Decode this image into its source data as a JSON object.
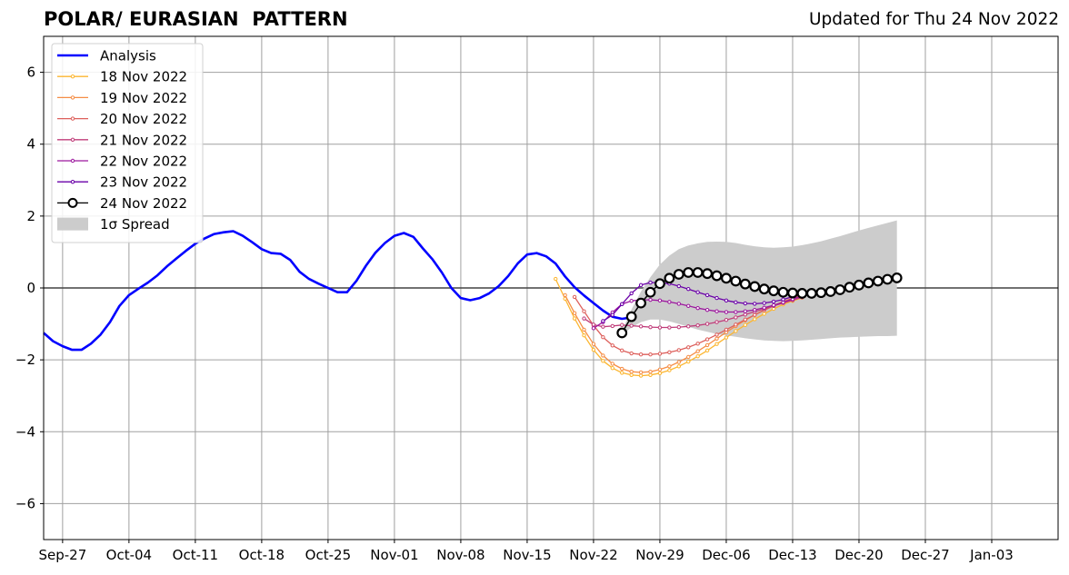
{
  "title": "POLAR/ EURASIAN  PATTERN",
  "updated": "Updated for Thu 24 Nov 2022",
  "chart_data": {
    "type": "line",
    "title": "POLAR/ EURASIAN  PATTERN",
    "xlabel": "",
    "ylabel": "",
    "xlim": [
      "2022-09-25",
      "2023-01-10"
    ],
    "ylim": [
      -7,
      7
    ],
    "x_ticks": [
      "Sep-27",
      "Oct-04",
      "Oct-11",
      "Oct-18",
      "Oct-25",
      "Nov-01",
      "Nov-08",
      "Nov-15",
      "Nov-22",
      "Nov-29",
      "Dec-06",
      "Dec-13",
      "Dec-20",
      "Dec-27",
      "Jan-03"
    ],
    "y_ticks": [
      -6,
      -4,
      -2,
      0,
      2,
      4,
      6
    ],
    "y_tick_labels": [
      "−6",
      "−4",
      "−2",
      "0",
      "2",
      "4",
      "6"
    ],
    "grid": true,
    "legend_position": "upper-left",
    "colors": {
      "analysis": "#0000ff",
      "f18": "#fcb630",
      "f19": "#f58d45",
      "f20": "#dd5f5b",
      "f21": "#c03d7a",
      "f22": "#9c179e",
      "f23": "#6a00a8",
      "f24": "#000000",
      "spread": "#cccccc"
    },
    "analysis": {
      "name": "Analysis",
      "start": "2022-09-25",
      "values": [
        -1.25,
        -1.48,
        -1.62,
        -1.72,
        -1.72,
        -1.55,
        -1.3,
        -0.95,
        -0.5,
        -0.2,
        -0.02,
        0.15,
        0.35,
        0.6,
        0.82,
        1.03,
        1.23,
        1.38,
        1.5,
        1.55,
        1.58,
        1.45,
        1.27,
        1.08,
        0.97,
        0.95,
        0.78,
        0.45,
        0.25,
        0.12,
        0.0,
        -0.12,
        -0.12,
        0.2,
        0.62,
        0.98,
        1.25,
        1.45,
        1.53,
        1.42,
        1.1,
        0.8,
        0.43,
        0.0,
        -0.28,
        -0.34,
        -0.28,
        -0.15,
        0.05,
        0.33,
        0.68,
        0.93,
        0.97,
        0.88,
        0.68,
        0.32,
        0.02,
        -0.21,
        -0.42,
        -0.63,
        -0.8,
        -0.86,
        -0.82
      ]
    },
    "forecasts": [
      {
        "name": "18 Nov 2022",
        "start": "2022-11-18",
        "values": [
          0.25,
          -0.3,
          -0.85,
          -1.32,
          -1.72,
          -2.03,
          -2.23,
          -2.36,
          -2.42,
          -2.44,
          -2.42,
          -2.37,
          -2.29,
          -2.18,
          -2.05,
          -1.9,
          -1.74,
          -1.56,
          -1.38,
          -1.2,
          -1.03,
          -0.87,
          -0.72,
          -0.58,
          -0.46,
          -0.36,
          -0.27
        ]
      },
      {
        "name": "19 Nov 2022",
        "start": "2022-11-19",
        "values": [
          -0.2,
          -0.7,
          -1.16,
          -1.56,
          -1.88,
          -2.11,
          -2.25,
          -2.33,
          -2.35,
          -2.33,
          -2.27,
          -2.18,
          -2.06,
          -1.92,
          -1.76,
          -1.59,
          -1.41,
          -1.23,
          -1.06,
          -0.9,
          -0.75,
          -0.61,
          -0.49,
          -0.38,
          -0.28,
          -0.19
        ]
      },
      {
        "name": "20 Nov 2022",
        "start": "2022-11-20",
        "values": [
          -0.25,
          -0.65,
          -1.04,
          -1.37,
          -1.6,
          -1.74,
          -1.82,
          -1.85,
          -1.85,
          -1.83,
          -1.79,
          -1.73,
          -1.65,
          -1.55,
          -1.43,
          -1.3,
          -1.16,
          -1.02,
          -0.88,
          -0.75,
          -0.62,
          -0.5,
          -0.39,
          -0.29,
          -0.2,
          -0.12
        ]
      },
      {
        "name": "21 Nov 2022",
        "start": "2022-11-21",
        "values": [
          -0.85,
          -1.02,
          -1.08,
          -1.06,
          -1.03,
          -1.05,
          -1.07,
          -1.09,
          -1.1,
          -1.1,
          -1.09,
          -1.07,
          -1.04,
          -1.0,
          -0.95,
          -0.89,
          -0.82,
          -0.74,
          -0.66,
          -0.58,
          -0.5,
          -0.42,
          -0.34,
          -0.26
        ]
      },
      {
        "name": "22 Nov 2022",
        "start": "2022-11-22",
        "values": [
          -1.12,
          -0.95,
          -0.68,
          -0.45,
          -0.36,
          -0.33,
          -0.33,
          -0.35,
          -0.39,
          -0.44,
          -0.5,
          -0.56,
          -0.61,
          -0.65,
          -0.67,
          -0.67,
          -0.65,
          -0.61,
          -0.55,
          -0.48,
          -0.4,
          -0.31,
          -0.22
        ]
      },
      {
        "name": "23 Nov 2022",
        "start": "2022-11-23",
        "values": [
          -0.92,
          -0.75,
          -0.45,
          -0.15,
          0.08,
          0.15,
          0.15,
          0.12,
          0.05,
          -0.03,
          -0.12,
          -0.2,
          -0.28,
          -0.35,
          -0.4,
          -0.43,
          -0.44,
          -0.42,
          -0.38,
          -0.32,
          -0.24,
          -0.15,
          -0.06
        ]
      },
      {
        "name": "24 Nov 2022",
        "start": "2022-11-25",
        "values": [
          -1.25,
          -0.8,
          -0.42,
          -0.12,
          0.12,
          0.27,
          0.38,
          0.43,
          0.43,
          0.4,
          0.34,
          0.27,
          0.19,
          0.11,
          0.04,
          -0.03,
          -0.08,
          -0.12,
          -0.14,
          -0.15,
          -0.15,
          -0.13,
          -0.1,
          -0.05,
          0.02,
          0.08,
          0.14,
          0.19,
          0.24,
          0.28
        ]
      }
    ],
    "spread": {
      "name": "1σ Spread",
      "start": "2022-11-25",
      "upper": [
        -1.2,
        -0.6,
        -0.1,
        0.3,
        0.65,
        0.9,
        1.08,
        1.18,
        1.24,
        1.28,
        1.29,
        1.28,
        1.25,
        1.2,
        1.16,
        1.13,
        1.12,
        1.13,
        1.15,
        1.19,
        1.24,
        1.3,
        1.37,
        1.44,
        1.52,
        1.6,
        1.67,
        1.74,
        1.81,
        1.88
      ],
      "lower": [
        -1.3,
        -1.1,
        -0.95,
        -0.88,
        -0.88,
        -0.93,
        -1.0,
        -1.08,
        -1.16,
        -1.22,
        -1.28,
        -1.32,
        -1.36,
        -1.4,
        -1.43,
        -1.46,
        -1.47,
        -1.48,
        -1.47,
        -1.46,
        -1.44,
        -1.42,
        -1.4,
        -1.38,
        -1.37,
        -1.36,
        -1.35,
        -1.34,
        -1.34,
        -1.33
      ]
    }
  }
}
